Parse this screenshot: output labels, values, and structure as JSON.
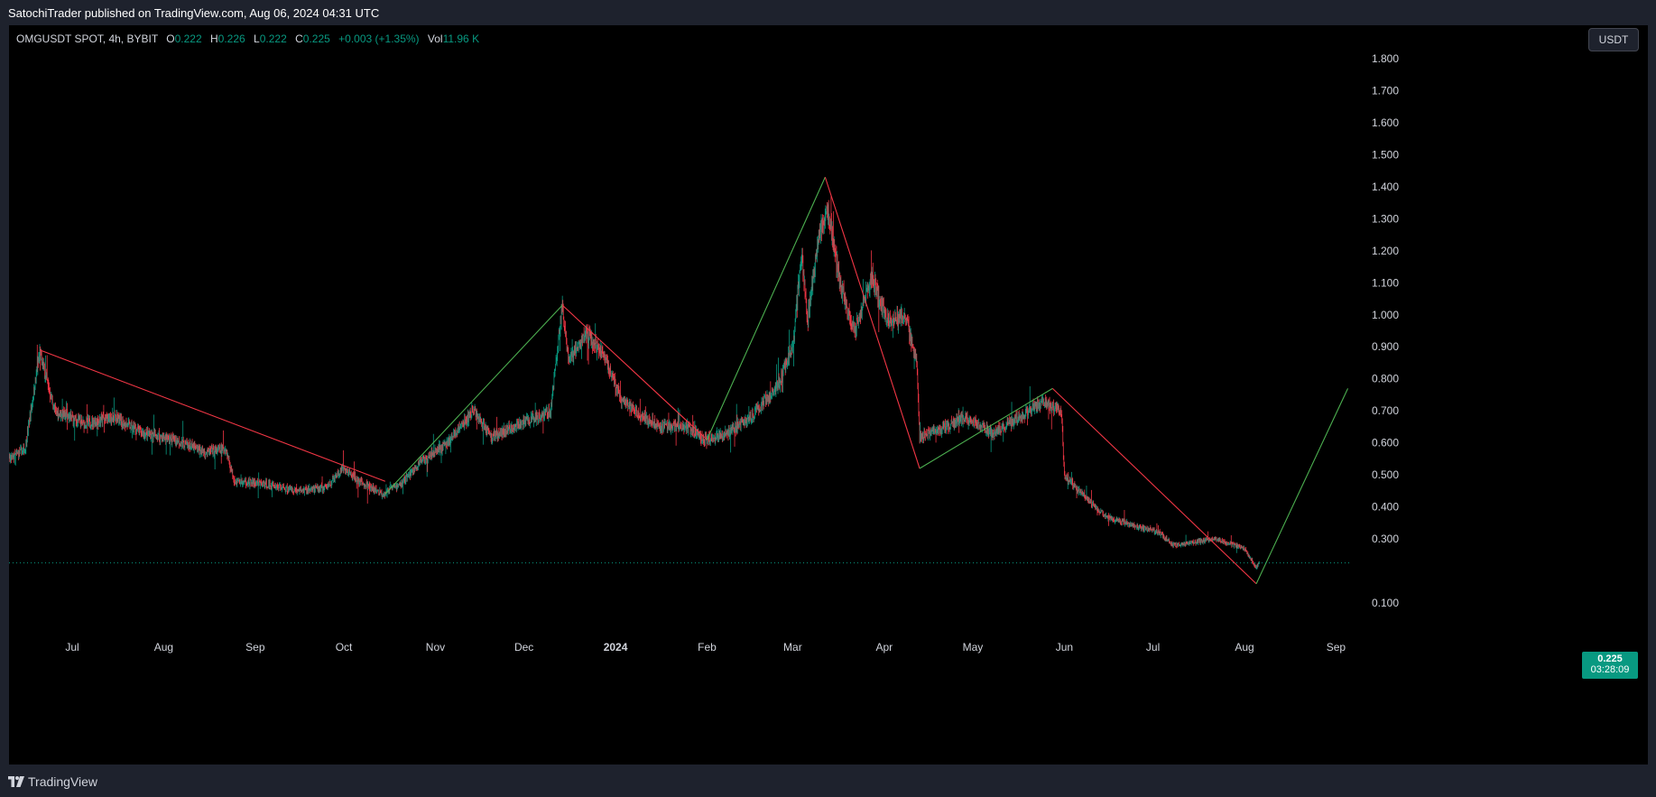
{
  "header": {
    "published": "SatochiTrader published on TradingView.com, Aug 06, 2024 04:31 UTC"
  },
  "legend": {
    "symbol": "OMGUSDT SPOT, 4h, BYBIT",
    "open_label": "O",
    "open": "0.222",
    "high_label": "H",
    "high": "0.226",
    "low_label": "L",
    "low": "0.222",
    "close_label": "C",
    "close": "0.225",
    "change": "+0.003 (+1.35%)",
    "vol_label": "Vol",
    "vol": "11.96 K"
  },
  "currency": "USDT",
  "last_price": {
    "price": "0.225",
    "countdown": "03:28:09"
  },
  "footer": {
    "brand": "TradingView"
  },
  "colors": {
    "up": "#089981",
    "down": "#f23645",
    "background": "#000000",
    "trend_up": "#4caf50",
    "trend_down": "#f23645"
  },
  "chart_data": {
    "type": "candlestick",
    "timeframe": "4h",
    "x_tick_labels": [
      "Jul",
      "Aug",
      "Sep",
      "Oct",
      "Nov",
      "Dec",
      "2024",
      "Feb",
      "Mar",
      "Apr",
      "May",
      "Jun",
      "Jul",
      "Aug",
      "Sep"
    ],
    "x_ticks": [
      "2023-07-01",
      "2023-08-01",
      "2023-09-01",
      "2023-10-01",
      "2023-11-01",
      "2023-12-01",
      "2024-01-01",
      "2024-02-01",
      "2024-03-01",
      "2024-04-01",
      "2024-05-01",
      "2024-06-01",
      "2024-07-01",
      "2024-08-01",
      "2024-09-01"
    ],
    "y_tick_labels": [
      "1.800",
      "1.700",
      "1.600",
      "1.500",
      "1.400",
      "1.300",
      "1.200",
      "1.100",
      "1.000",
      "0.900",
      "0.800",
      "0.700",
      "0.600",
      "0.500",
      "0.400",
      "0.300",
      "0.100"
    ],
    "ylim": [
      0.0,
      1.9
    ],
    "price_path": [
      [
        "2023-06-01",
        0.66
      ],
      [
        "2023-06-04",
        0.54
      ],
      [
        "2023-06-10",
        0.55
      ],
      [
        "2023-06-15",
        0.58
      ],
      [
        "2023-06-20",
        0.88
      ],
      [
        "2023-06-25",
        0.7
      ],
      [
        "2023-07-05",
        0.66
      ],
      [
        "2023-07-15",
        0.68
      ],
      [
        "2023-07-25",
        0.63
      ],
      [
        "2023-08-05",
        0.61
      ],
      [
        "2023-08-15",
        0.57
      ],
      [
        "2023-08-22",
        0.58
      ],
      [
        "2023-08-25",
        0.48
      ],
      [
        "2023-09-05",
        0.47
      ],
      [
        "2023-09-15",
        0.45
      ],
      [
        "2023-09-25",
        0.46
      ],
      [
        "2023-10-01",
        0.52
      ],
      [
        "2023-10-06",
        0.48
      ],
      [
        "2023-10-14",
        0.44
      ],
      [
        "2023-10-20",
        0.47
      ],
      [
        "2023-10-28",
        0.55
      ],
      [
        "2023-11-05",
        0.6
      ],
      [
        "2023-11-14",
        0.7
      ],
      [
        "2023-11-20",
        0.62
      ],
      [
        "2023-11-30",
        0.66
      ],
      [
        "2023-12-10",
        0.7
      ],
      [
        "2023-12-14",
        1.03
      ],
      [
        "2023-12-16",
        0.85
      ],
      [
        "2023-12-22",
        0.94
      ],
      [
        "2023-12-28",
        0.88
      ],
      [
        "2024-01-03",
        0.73
      ],
      [
        "2024-01-10",
        0.68
      ],
      [
        "2024-01-18",
        0.65
      ],
      [
        "2024-01-25",
        0.65
      ],
      [
        "2024-01-31",
        0.61
      ],
      [
        "2024-02-08",
        0.63
      ],
      [
        "2024-02-18",
        0.7
      ],
      [
        "2024-02-25",
        0.78
      ],
      [
        "2024-03-01",
        0.9
      ],
      [
        "2024-03-04",
        1.2
      ],
      [
        "2024-03-06",
        0.98
      ],
      [
        "2024-03-10",
        1.25
      ],
      [
        "2024-03-13",
        1.32
      ],
      [
        "2024-03-17",
        1.1
      ],
      [
        "2024-03-22",
        0.95
      ],
      [
        "2024-03-28",
        1.12
      ],
      [
        "2024-04-02",
        0.98
      ],
      [
        "2024-04-08",
        1.0
      ],
      [
        "2024-04-12",
        0.85
      ],
      [
        "2024-04-13",
        0.62
      ],
      [
        "2024-04-20",
        0.64
      ],
      [
        "2024-04-28",
        0.68
      ],
      [
        "2024-05-08",
        0.63
      ],
      [
        "2024-05-15",
        0.67
      ],
      [
        "2024-05-25",
        0.73
      ],
      [
        "2024-05-31",
        0.7
      ],
      [
        "2024-06-01",
        0.5
      ],
      [
        "2024-06-06",
        0.45
      ],
      [
        "2024-06-15",
        0.37
      ],
      [
        "2024-06-25",
        0.34
      ],
      [
        "2024-07-03",
        0.32
      ],
      [
        "2024-07-08",
        0.28
      ],
      [
        "2024-07-15",
        0.29
      ],
      [
        "2024-07-22",
        0.3
      ],
      [
        "2024-08-01",
        0.27
      ],
      [
        "2024-08-05",
        0.21
      ],
      [
        "2024-08-06",
        0.225
      ]
    ],
    "series": [],
    "trendlines": [
      {
        "color": "red",
        "from": [
          "2023-06-20",
          0.89
        ],
        "to": [
          "2023-10-15",
          0.48
        ]
      },
      {
        "color": "green",
        "from": [
          "2023-10-15",
          0.44
        ],
        "to": [
          "2023-12-14",
          1.03
        ]
      },
      {
        "color": "red",
        "from": [
          "2023-12-14",
          1.03
        ],
        "to": [
          "2024-02-01",
          0.61
        ]
      },
      {
        "color": "green",
        "from": [
          "2024-02-01",
          0.61
        ],
        "to": [
          "2024-03-12",
          1.43
        ]
      },
      {
        "color": "red",
        "from": [
          "2024-03-12",
          1.43
        ],
        "to": [
          "2024-04-13",
          0.52
        ]
      },
      {
        "color": "green",
        "from": [
          "2024-04-13",
          0.52
        ],
        "to": [
          "2024-05-28",
          0.77
        ]
      },
      {
        "color": "red",
        "from": [
          "2024-05-28",
          0.77
        ],
        "to": [
          "2024-08-05",
          0.16
        ]
      },
      {
        "color": "green",
        "from": [
          "2024-08-05",
          0.16
        ],
        "to": [
          "2024-09-05",
          0.77
        ]
      }
    ],
    "last_price_line": 0.225,
    "grid": false,
    "title": "",
    "xlabel": "",
    "ylabel": ""
  }
}
